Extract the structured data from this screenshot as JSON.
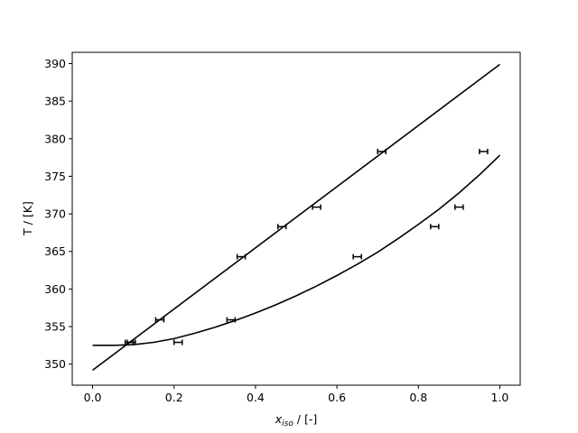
{
  "chart_data": {
    "type": "line",
    "title": "",
    "xlabel_main": "x",
    "xlabel_sub": "iso",
    "xlabel_rest": " / [-]",
    "ylabel": "T / [K]",
    "xlim": [
      -0.05,
      1.05
    ],
    "ylim": [
      347.2,
      391.5
    ],
    "xticks": [
      0.0,
      0.2,
      0.4,
      0.6,
      0.8,
      1.0
    ],
    "xtick_labels": [
      "0.0",
      "0.2",
      "0.4",
      "0.6",
      "0.8",
      "1.0"
    ],
    "yticks": [
      350,
      355,
      360,
      365,
      370,
      375,
      380,
      385,
      390
    ],
    "ytick_labels": [
      "350",
      "355",
      "360",
      "365",
      "370",
      "375",
      "380",
      "385",
      "390"
    ],
    "grid": false,
    "series": [
      {
        "kind": "line",
        "color": "#000000",
        "x": [
          0.0,
          1.0
        ],
        "y": [
          349.2,
          389.9
        ]
      },
      {
        "kind": "line",
        "color": "#000000",
        "x": [
          0.0,
          0.05,
          0.1,
          0.15,
          0.2,
          0.25,
          0.3,
          0.35,
          0.4,
          0.45,
          0.5,
          0.55,
          0.6,
          0.65,
          0.7,
          0.75,
          0.8,
          0.85,
          0.9,
          0.95,
          1.0
        ],
        "y": [
          352.5,
          352.5,
          352.6,
          352.9,
          353.4,
          354.1,
          354.9,
          355.8,
          356.8,
          357.9,
          359.1,
          360.4,
          361.8,
          363.3,
          364.9,
          366.7,
          368.6,
          370.6,
          372.8,
          375.2,
          377.8
        ]
      },
      {
        "kind": "errorbar",
        "color": "#000000",
        "x": [
          0.09,
          0.165,
          0.365,
          0.465,
          0.55,
          0.71
        ],
        "y": [
          352.9,
          355.9,
          364.3,
          368.3,
          370.9,
          378.3
        ],
        "xerr": 0.01
      },
      {
        "kind": "errorbar",
        "color": "#000000",
        "x": [
          0.095,
          0.21,
          0.34,
          0.65,
          0.84,
          0.9,
          0.96
        ],
        "y": [
          352.9,
          352.9,
          355.9,
          364.3,
          368.3,
          370.9,
          378.3
        ],
        "xerr": 0.01
      }
    ]
  }
}
